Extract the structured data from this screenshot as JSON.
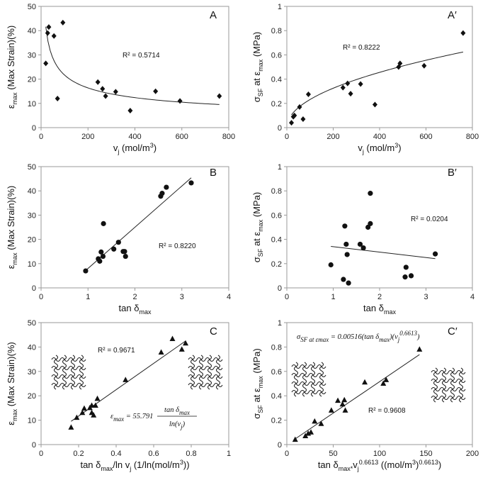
{
  "chart_data": [
    {
      "id": "A",
      "type": "scatter",
      "letter": "A",
      "xlabel": "v_j (mol/m^3)",
      "ylabel": "ε_max (Max Strain)(%)",
      "xlim": [
        0,
        800
      ],
      "ylim": [
        0,
        50
      ],
      "xticks": [
        "0",
        "200",
        "400",
        "600",
        "800"
      ],
      "yticks": [
        "0",
        "10",
        "20",
        "30",
        "40",
        "50"
      ],
      "marker": "diamond",
      "points": [
        [
          20,
          26.5
        ],
        [
          28,
          39
        ],
        [
          33,
          41.5
        ],
        [
          55,
          37.8
        ],
        [
          70,
          12
        ],
        [
          93,
          43.3
        ],
        [
          242,
          18.8
        ],
        [
          262,
          16
        ],
        [
          275,
          13
        ],
        [
          318,
          14.8
        ],
        [
          380,
          7
        ],
        [
          488,
          15
        ],
        [
          592,
          11
        ],
        [
          760,
          13
        ]
      ],
      "fit": {
        "kind": "power",
        "a": 140,
        "b": -0.405
      },
      "r2": "R² = 0.5714"
    },
    {
      "id": "Ap",
      "type": "scatter",
      "letter": "A′",
      "xlabel": "v_j (mol/m^3)",
      "ylabel": "σ_SF at ε_max (MPa)",
      "xlim": [
        0,
        800
      ],
      "ylim": [
        0,
        1
      ],
      "xticks": [
        "0",
        "200",
        "400",
        "600",
        "800"
      ],
      "yticks": [
        "0",
        "0.2",
        "0.4",
        "0.6",
        "0.8",
        "1"
      ],
      "marker": "diamond",
      "points": [
        [
          20,
          0.04
        ],
        [
          28,
          0.09
        ],
        [
          33,
          0.1
        ],
        [
          55,
          0.17
        ],
        [
          70,
          0.07
        ],
        [
          93,
          0.275
        ],
        [
          242,
          0.33
        ],
        [
          262,
          0.365
        ],
        [
          275,
          0.28
        ],
        [
          318,
          0.36
        ],
        [
          380,
          0.19
        ],
        [
          482,
          0.5
        ],
        [
          488,
          0.53
        ],
        [
          592,
          0.51
        ],
        [
          760,
          0.78
        ]
      ],
      "fit": {
        "kind": "power",
        "a": 0.0245,
        "b": 0.488
      },
      "r2": "R² = 0.8222"
    },
    {
      "id": "B",
      "type": "scatter",
      "letter": "B",
      "xlabel": "tan δ_max",
      "ylabel": "ε_max (Max Strain)(%)",
      "xlim": [
        0,
        4
      ],
      "ylim": [
        0,
        50
      ],
      "xticks": [
        "0",
        "1",
        "2",
        "3",
        "4"
      ],
      "yticks": [
        "0",
        "10",
        "20",
        "30",
        "40",
        "50"
      ],
      "marker": "circle",
      "points": [
        [
          0.95,
          7
        ],
        [
          1.22,
          12
        ],
        [
          1.25,
          11
        ],
        [
          1.28,
          14.8
        ],
        [
          1.32,
          13
        ],
        [
          1.33,
          26.5
        ],
        [
          1.55,
          16
        ],
        [
          1.65,
          18.8
        ],
        [
          1.75,
          15
        ],
        [
          1.78,
          15
        ],
        [
          1.8,
          13
        ],
        [
          2.55,
          37.8
        ],
        [
          2.58,
          39
        ],
        [
          2.67,
          41.5
        ],
        [
          3.2,
          43.3
        ]
      ],
      "fit": {
        "kind": "linear",
        "m": 17.0,
        "c": -9.0,
        "x0": 0.95,
        "x1": 3.2
      },
      "r2": "R² = 0.8220"
    },
    {
      "id": "Bp",
      "type": "scatter",
      "letter": "B′",
      "xlabel": "tan δ_max",
      "ylabel": "σ_SF at ε_max (MPa)",
      "xlim": [
        0,
        4
      ],
      "ylim": [
        0,
        1
      ],
      "xticks": [
        "0",
        "1",
        "2",
        "3",
        "4"
      ],
      "yticks": [
        "0",
        "0.2",
        "0.4",
        "0.6",
        "0.8",
        "1"
      ],
      "marker": "circle",
      "points": [
        [
          0.95,
          0.19
        ],
        [
          1.22,
          0.07
        ],
        [
          1.25,
          0.51
        ],
        [
          1.28,
          0.36
        ],
        [
          1.3,
          0.275
        ],
        [
          1.33,
          0.04
        ],
        [
          1.58,
          0.36
        ],
        [
          1.65,
          0.33
        ],
        [
          1.75,
          0.5
        ],
        [
          1.8,
          0.53
        ],
        [
          1.8,
          0.78
        ],
        [
          2.55,
          0.09
        ],
        [
          2.57,
          0.17
        ],
        [
          2.68,
          0.1
        ],
        [
          3.2,
          0.28
        ]
      ],
      "fit": {
        "kind": "linear",
        "m": -0.045,
        "c": 0.385,
        "x0": 0.95,
        "x1": 3.2
      },
      "r2": "R² = 0.0204"
    },
    {
      "id": "C",
      "type": "scatter",
      "letter": "C",
      "xlabel": "tan δ_max/ln v_j (1/ln(mol/m^3))",
      "ylabel": "ε_max (Max Strain)(%)",
      "xlim": [
        0,
        1
      ],
      "ylim": [
        0,
        50
      ],
      "xticks": [
        "0",
        "0.2",
        "0.4",
        "0.6",
        "0.8",
        "1"
      ],
      "yticks": [
        "0",
        "10",
        "20",
        "30",
        "40",
        "50"
      ],
      "marker": "triangle",
      "points": [
        [
          0.16,
          7
        ],
        [
          0.19,
          11
        ],
        [
          0.22,
          13
        ],
        [
          0.23,
          14.8
        ],
        [
          0.26,
          15
        ],
        [
          0.27,
          16
        ],
        [
          0.27,
          13
        ],
        [
          0.28,
          12
        ],
        [
          0.29,
          16
        ],
        [
          0.3,
          18.8
        ],
        [
          0.45,
          26.5
        ],
        [
          0.64,
          37.8
        ],
        [
          0.7,
          43.3
        ],
        [
          0.75,
          39
        ],
        [
          0.77,
          41.5
        ]
      ],
      "fit": {
        "kind": "linear",
        "m": 54.0,
        "c": 0.9,
        "x0": 0.16,
        "x1": 0.77
      },
      "r2": "R² = 0.9671",
      "equation": {
        "lhs": "ε_max = 55.791",
        "num": "tan δ_max",
        "den": "ln(v_j)"
      }
    },
    {
      "id": "Cp",
      "type": "scatter",
      "letter": "C′",
      "xlabel": "tan δ_max*v_j^0.6613 ((mol/m^3)^0.6613)",
      "ylabel": "σ_SF at ε_max (MPa)",
      "xlim": [
        0,
        200
      ],
      "ylim": [
        0,
        1
      ],
      "xticks": [
        "0",
        "50",
        "100",
        "150",
        "200"
      ],
      "yticks": [
        "0",
        "0.2",
        "0.4",
        "0.6",
        "0.8",
        "1"
      ],
      "marker": "triangle",
      "points": [
        [
          9,
          0.04
        ],
        [
          20,
          0.07
        ],
        [
          23,
          0.09
        ],
        [
          26,
          0.1
        ],
        [
          30,
          0.19
        ],
        [
          37,
          0.17
        ],
        [
          48,
          0.28
        ],
        [
          55,
          0.36
        ],
        [
          60,
          0.33
        ],
        [
          62,
          0.365
        ],
        [
          63,
          0.28
        ],
        [
          84,
          0.51
        ],
        [
          104,
          0.5
        ],
        [
          107,
          0.53
        ],
        [
          143,
          0.78
        ]
      ],
      "fit": {
        "kind": "linear",
        "m": 0.00516,
        "c": 0.0,
        "x0": 9,
        "x1": 143
      },
      "r2": "R² = 0.9608",
      "equation": {
        "lhs": "σ_SF at ε_max = 0.00516(tan δ_max)(v_j^0.6613)"
      }
    }
  ]
}
